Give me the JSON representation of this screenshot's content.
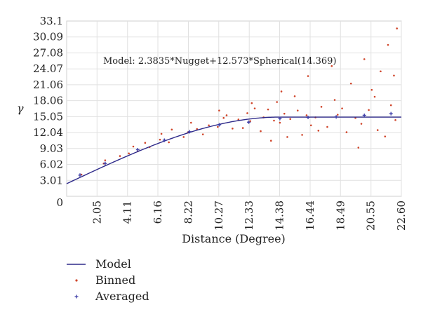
{
  "chart_data": {
    "type": "scatter",
    "title": "",
    "xlabel": "Distance (Degree)",
    "ylabel": "γ",
    "xlim": [
      0,
      22.6
    ],
    "ylim": [
      0,
      33.1
    ],
    "x_ticks": [
      {
        "label": "2.05",
        "value": 2.05
      },
      {
        "label": "4.11",
        "value": 4.11
      },
      {
        "label": "6.16",
        "value": 6.16
      },
      {
        "label": "8.22",
        "value": 8.22
      },
      {
        "label": "10.27",
        "value": 10.27
      },
      {
        "label": "12.33",
        "value": 12.33
      },
      {
        "label": "14.38",
        "value": 14.38
      },
      {
        "label": "16.44",
        "value": 16.44
      },
      {
        "label": "18.49",
        "value": 18.49
      },
      {
        "label": "20.55",
        "value": 20.55
      },
      {
        "label": "22.60",
        "value": 22.6
      }
    ],
    "y_ticks": [
      {
        "label": "0",
        "value": 0
      },
      {
        "label": "3.01",
        "value": 3.01
      },
      {
        "label": "6.02",
        "value": 6.02
      },
      {
        "label": "9.03",
        "value": 9.03
      },
      {
        "label": "12.04",
        "value": 12.04
      },
      {
        "label": "15.05",
        "value": 15.05
      },
      {
        "label": "18.06",
        "value": 18.06
      },
      {
        "label": "21.06",
        "value": 21.06
      },
      {
        "label": "24.07",
        "value": 24.07
      },
      {
        "label": "27.08",
        "value": 27.08
      },
      {
        "label": "30.09",
        "value": 30.09
      },
      {
        "label": "33.1",
        "value": 33.1
      }
    ],
    "grid": true,
    "legend_position": "bottom-left",
    "annotation": "Model: 2.3835*Nugget+12.573*Spherical(14.369)",
    "model": {
      "name": "Model",
      "nugget": 2.3835,
      "sill": 12.573,
      "range": 14.369,
      "color": "#2e2a8a"
    },
    "series": [
      {
        "name": "Binned",
        "type": "scatter",
        "color": "#d0452a",
        "x": [
          1.0,
          2.5,
          2.6,
          3.6,
          4.2,
          4.5,
          4.8,
          5.3,
          5.6,
          6.3,
          6.4,
          6.9,
          7.1,
          7.9,
          8.2,
          8.4,
          8.8,
          9.2,
          9.6,
          10.2,
          10.3,
          10.6,
          10.8,
          11.2,
          11.6,
          11.9,
          12.2,
          12.4,
          12.5,
          12.7,
          13.1,
          13.3,
          13.6,
          13.8,
          14.0,
          14.2,
          14.4,
          14.5,
          14.7,
          14.9,
          15.1,
          15.4,
          15.6,
          15.9,
          16.2,
          16.3,
          16.5,
          16.8,
          17.0,
          17.2,
          17.6,
          17.9,
          18.1,
          18.3,
          18.6,
          18.9,
          19.2,
          19.5,
          19.7,
          19.9,
          20.1,
          20.4,
          20.6,
          20.8,
          21.0,
          21.2,
          21.5,
          21.7,
          21.9,
          22.1,
          22.2,
          22.3
        ],
        "y": [
          4.1,
          6.2,
          6.8,
          7.6,
          8.1,
          9.4,
          8.5,
          10.1,
          9.3,
          10.7,
          11.8,
          10.2,
          12.6,
          11.2,
          12.1,
          13.9,
          12.7,
          11.7,
          13.4,
          13.1,
          16.2,
          14.8,
          15.3,
          12.8,
          14.5,
          12.9,
          15.7,
          14.2,
          17.6,
          16.6,
          12.3,
          14.9,
          16.4,
          10.5,
          14.3,
          17.8,
          13.9,
          19.8,
          15.6,
          11.2,
          14.6,
          18.9,
          16.2,
          11.6,
          15.3,
          22.7,
          13.4,
          14.9,
          12.4,
          16.9,
          13.1,
          24.6,
          18.2,
          15.4,
          16.6,
          12.1,
          21.3,
          14.8,
          9.2,
          13.7,
          25.9,
          16.3,
          20.1,
          18.8,
          12.5,
          23.6,
          11.3,
          28.6,
          17.2,
          22.8,
          14.4,
          31.7
        ]
      },
      {
        "name": "Averaged",
        "type": "scatter",
        "color": "#3f3fa8",
        "x": [
          0.9,
          2.6,
          4.8,
          6.6,
          8.3,
          10.3,
          12.3,
          14.4,
          16.3,
          18.2,
          20.1,
          21.9
        ],
        "y": [
          4.0,
          6.2,
          8.8,
          10.6,
          12.2,
          13.5,
          14.0,
          14.7,
          14.9,
          15.0,
          15.3,
          15.6
        ]
      }
    ]
  }
}
